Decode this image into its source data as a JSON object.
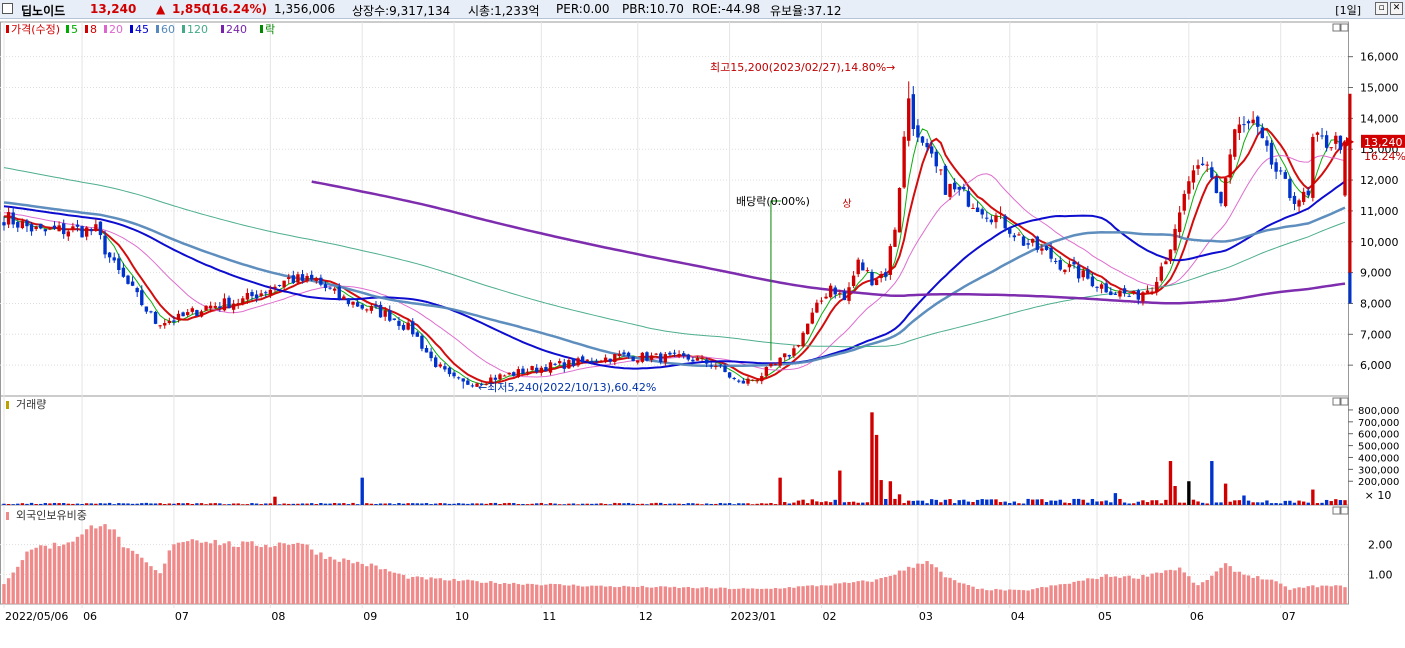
{
  "header": {
    "stock_name": "딥노이드",
    "price": "13,240",
    "change_arrow": "▲",
    "change": "1,850",
    "change_pct": "(16.24%)",
    "volume": "1,356,006",
    "listed_shares": "상장수:9,317,134",
    "market_cap": "시총:1,233억",
    "per": "PER:0.00",
    "pbr": "PBR:10.70",
    "roe": "ROE:-44.98",
    "float_ratio": "유보율:37.12",
    "period": "[1일]",
    "colors": {
      "up": "#d00000",
      "down": "#0033cc"
    }
  },
  "price_panel": {
    "legend": [
      {
        "label": "가격(수정)",
        "color": "#d00000"
      },
      {
        "label": "5",
        "color": "#00aa00"
      },
      {
        "label": "8",
        "color": "#d00000"
      },
      {
        "label": "20",
        "color": "#dd66cc"
      },
      {
        "label": "45",
        "color": "#0000cc"
      },
      {
        "label": "60",
        "color": "#5588bb"
      },
      {
        "label": "120",
        "color": "#44aa88"
      },
      {
        "label": "240",
        "color": "#7722aa"
      },
      {
        "label": "락",
        "color": "#008800"
      }
    ],
    "high_annotation": "최고15,200(2023/02/27),14.80%→",
    "low_annotation": "←최저5,240(2022/10/13),60.42%",
    "dividend_annotation": "배당락(0.00%)",
    "limit_up_marker": "상",
    "current_price_tag": "13,240",
    "current_pct_tag": "16.24%"
  },
  "volume_panel": {
    "title": "거래량",
    "unit_label": "× 10"
  },
  "foreign_panel": {
    "title": "외국인보유비중"
  },
  "chart_data": [
    {
      "type": "candlestick",
      "title": "가격(수정)",
      "y_ticks": [
        6000,
        7000,
        8000,
        9000,
        10000,
        11000,
        12000,
        13000,
        14000,
        15000,
        16000
      ],
      "ylim": [
        5000,
        16800
      ],
      "x_labels": [
        "2022/05/06",
        "06",
        "07",
        "08",
        "09",
        "10",
        "11",
        "12",
        "2023/01",
        "02",
        "03",
        "04",
        "05",
        "06",
        "07"
      ],
      "x_label_positions": [
        0,
        17,
        37,
        58,
        78,
        98,
        117,
        138,
        158,
        178,
        199,
        219,
        238,
        258,
        278
      ],
      "total_days": 293,
      "anchors": [
        [
          0,
          10800
        ],
        [
          8,
          10300
        ],
        [
          14,
          10400
        ],
        [
          20,
          10350
        ],
        [
          24,
          9200
        ],
        [
          29,
          8200
        ],
        [
          33,
          7400
        ],
        [
          38,
          7500
        ],
        [
          44,
          7900
        ],
        [
          52,
          8100
        ],
        [
          58,
          8500
        ],
        [
          62,
          8800
        ],
        [
          68,
          8700
        ],
        [
          73,
          8200
        ],
        [
          78,
          7900
        ],
        [
          84,
          7600
        ],
        [
          89,
          7100
        ],
        [
          93,
          6200
        ],
        [
          97,
          5600
        ],
        [
          100,
          5400
        ],
        [
          104,
          5500
        ],
        [
          110,
          5700
        ],
        [
          118,
          5950
        ],
        [
          126,
          6100
        ],
        [
          134,
          6300
        ],
        [
          142,
          6250
        ],
        [
          150,
          6200
        ],
        [
          155,
          6000
        ],
        [
          160,
          5400
        ],
        [
          164,
          5600
        ],
        [
          168,
          6000
        ],
        [
          172,
          6500
        ],
        [
          176,
          7600
        ],
        [
          180,
          8600
        ],
        [
          183,
          8100
        ],
        [
          186,
          9300
        ],
        [
          189,
          8800
        ],
        [
          192,
          9000
        ],
        [
          194,
          10500
        ],
        [
          197,
          14700
        ],
        [
          199,
          13200
        ],
        [
          202,
          12600
        ],
        [
          205,
          11800
        ],
        [
          210,
          11400
        ],
        [
          214,
          11000
        ],
        [
          218,
          10600
        ],
        [
          222,
          10000
        ],
        [
          226,
          9700
        ],
        [
          230,
          9300
        ],
        [
          236,
          8800
        ],
        [
          240,
          8500
        ],
        [
          244,
          8300
        ],
        [
          246,
          8200
        ],
        [
          250,
          8600
        ],
        [
          255,
          10200
        ],
        [
          258,
          12000
        ],
        [
          262,
          12400
        ],
        [
          265,
          11300
        ],
        [
          268,
          13600
        ],
        [
          272,
          13800
        ],
        [
          275,
          12800
        ],
        [
          280,
          11500
        ],
        [
          283,
          11400
        ],
        [
          284,
          11390
        ],
        [
          285,
          13240
        ]
      ],
      "last_close": 13240,
      "high": {
        "date": "2023/02/27",
        "value": 15200
      },
      "low": {
        "date": "2022/10/13",
        "value": 5240
      },
      "moving_averages": [
        5,
        8,
        20,
        45,
        60,
        120,
        240
      ]
    },
    {
      "type": "bar",
      "title": "거래량",
      "y_ticks": [
        200000,
        300000,
        400000,
        500000,
        600000,
        700000,
        800000
      ],
      "spikes": [
        [
          59,
          70000
        ],
        [
          78,
          230000
        ],
        [
          169,
          230000
        ],
        [
          182,
          290000
        ],
        [
          189,
          780000
        ],
        [
          190,
          590000
        ],
        [
          191,
          210000
        ],
        [
          193,
          200000
        ],
        [
          195,
          90000
        ],
        [
          242,
          100000
        ],
        [
          254,
          370000
        ],
        [
          255,
          160000
        ],
        [
          258,
          200000
        ],
        [
          263,
          370000
        ],
        [
          266,
          180000
        ],
        [
          270,
          80000
        ],
        [
          285,
          130000
        ]
      ],
      "spike_colors": {
        "189": "#d00000",
        "190": "#d00000",
        "258": "#000000"
      }
    },
    {
      "type": "bar",
      "title": "외국인보유비중",
      "y_ticks": [
        1.0,
        2.0
      ],
      "anchors": [
        [
          0,
          0.7
        ],
        [
          6,
          1.9
        ],
        [
          12,
          2.0
        ],
        [
          17,
          2.3
        ],
        [
          20,
          2.7
        ],
        [
          22,
          2.8
        ],
        [
          24,
          2.4
        ],
        [
          27,
          1.8
        ],
        [
          30,
          1.5
        ],
        [
          34,
          1.0
        ],
        [
          37,
          2.1
        ],
        [
          42,
          2.2
        ],
        [
          50,
          2.0
        ],
        [
          58,
          2.0
        ],
        [
          64,
          2.1
        ],
        [
          70,
          1.6
        ],
        [
          80,
          1.3
        ],
        [
          88,
          0.9
        ],
        [
          98,
          0.8
        ],
        [
          110,
          0.7
        ],
        [
          130,
          0.6
        ],
        [
          150,
          0.55
        ],
        [
          165,
          0.5
        ],
        [
          180,
          0.65
        ],
        [
          190,
          0.8
        ],
        [
          197,
          1.2
        ],
        [
          201,
          1.5
        ],
        [
          205,
          0.9
        ],
        [
          212,
          0.5
        ],
        [
          222,
          0.45
        ],
        [
          232,
          0.7
        ],
        [
          240,
          0.95
        ],
        [
          247,
          0.9
        ],
        [
          252,
          1.1
        ],
        [
          256,
          1.2
        ],
        [
          260,
          0.6
        ],
        [
          266,
          1.3
        ],
        [
          270,
          1.0
        ],
        [
          276,
          0.8
        ],
        [
          280,
          0.5
        ],
        [
          285,
          0.6
        ]
      ]
    }
  ]
}
